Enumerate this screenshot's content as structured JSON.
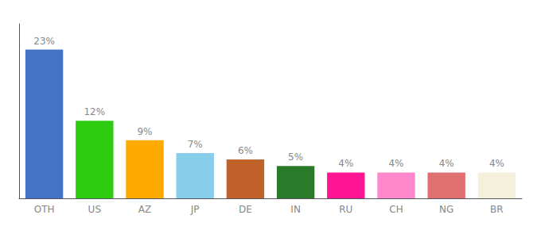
{
  "chart_data": {
    "type": "bar",
    "categories": [
      "OTH",
      "US",
      "AZ",
      "JP",
      "DE",
      "IN",
      "RU",
      "CH",
      "NG",
      "BR"
    ],
    "values": [
      23,
      12,
      9,
      7,
      6,
      5,
      4,
      4,
      4,
      4
    ],
    "value_labels": [
      "23%",
      "12%",
      "9%",
      "7%",
      "6%",
      "5%",
      "4%",
      "4%",
      "4%",
      "4%"
    ],
    "colors": [
      "#4472c4",
      "#2ecc11",
      "#ffaa00",
      "#87ceeb",
      "#c0622a",
      "#2a7a2a",
      "#ff1493",
      "#ff88cc",
      "#e07070",
      "#f5f0dc"
    ],
    "ylim": [
      0,
      27
    ],
    "data_labels": true,
    "tick_labels": "x",
    "grid": false
  }
}
